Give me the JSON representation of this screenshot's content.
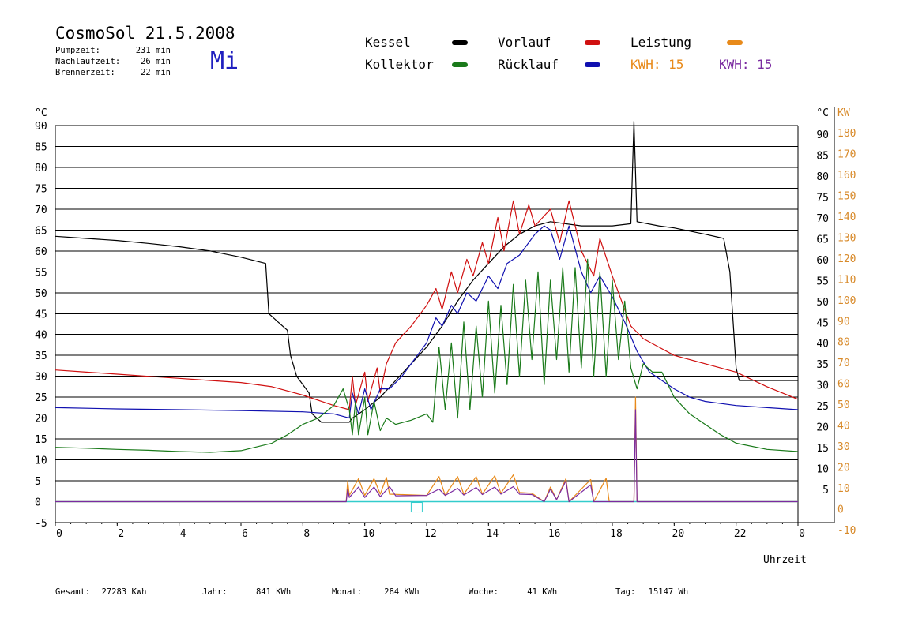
{
  "header": {
    "title": "CosmoSol 21.5.2008",
    "weekday": "Mi",
    "stats": [
      {
        "label": "Pumpzeit:",
        "value": "231 min"
      },
      {
        "label": "Nachlaufzeit:",
        "value": "26 min"
      },
      {
        "label": "Brennerzeit:",
        "value": "22 min"
      }
    ]
  },
  "legend": {
    "kessel": "Kessel",
    "kollektor": "Kollektor",
    "vorlauf": "Vorlauf",
    "ruecklauf": "Rücklauf",
    "leistung": "Leistung",
    "kwh_orange_label": "KWH:",
    "kwh_orange_value": "15",
    "kwh_purple_label": "KWH:",
    "kwh_purple_value": "15"
  },
  "colors": {
    "kessel": "#000000",
    "kollektor": "#1a7a1a",
    "vorlauf": "#d01010",
    "ruecklauf": "#1010b0",
    "leistung": "#e88a1a",
    "kwh2": "#7a2aa0",
    "baseline": "#33cccc",
    "right_axis": "#d88a2a"
  },
  "footer": [
    {
      "label": "Gesamt:",
      "value": "27283 KWh"
    },
    {
      "label": "Jahr:",
      "value": "841 KWh"
    },
    {
      "label": "Monat:",
      "value": "284 KWh"
    },
    {
      "label": "Woche:",
      "value": "41 KWh"
    },
    {
      "label": "Tag:",
      "value": "15147 Wh"
    }
  ],
  "chart_data": {
    "type": "line",
    "xlabel": "Uhrzeit",
    "ylabel_left": "°C",
    "ylabel_right": "KW",
    "xlim": [
      0,
      24
    ],
    "ylim": [
      -5,
      90
    ],
    "ylim_right": [
      -10,
      180
    ],
    "x_ticks": [
      "0",
      "2",
      "4",
      "6",
      "8",
      "10",
      "12",
      "14",
      "16",
      "18",
      "20",
      "22",
      "0"
    ],
    "y_ticks_left": [
      "90",
      "85",
      "80",
      "75",
      "70",
      "65",
      "60",
      "55",
      "50",
      "45",
      "40",
      "35",
      "30",
      "25",
      "20",
      "15",
      "10",
      "5",
      "0",
      "-5"
    ],
    "y_ticks_right_c": [
      "90",
      "85",
      "80",
      "75",
      "70",
      "65",
      "60",
      "55",
      "50",
      "45",
      "40",
      "35",
      "30",
      "25",
      "20",
      "15",
      "10",
      "5"
    ],
    "y_ticks_right_kw": [
      "180",
      "170",
      "160",
      "150",
      "140",
      "130",
      "120",
      "110",
      "100",
      "90",
      "80",
      "70",
      "60",
      "50",
      "40",
      "30",
      "20",
      "10",
      "0",
      "-10"
    ],
    "grid": "horizontal",
    "series": [
      {
        "name": "Kessel",
        "key": "kessel",
        "points": [
          [
            0,
            63.5
          ],
          [
            1,
            63
          ],
          [
            2,
            62.5
          ],
          [
            3,
            61.8
          ],
          [
            4,
            61
          ],
          [
            5,
            60
          ],
          [
            6,
            58.5
          ],
          [
            6.8,
            57
          ],
          [
            6.9,
            45
          ],
          [
            7.2,
            43
          ],
          [
            7.5,
            41
          ],
          [
            7.6,
            35
          ],
          [
            7.8,
            30
          ],
          [
            8.2,
            26
          ],
          [
            8.3,
            21
          ],
          [
            8.6,
            19
          ],
          [
            9.5,
            19
          ],
          [
            9.6,
            20
          ],
          [
            10,
            22
          ],
          [
            10.5,
            25
          ],
          [
            11,
            29
          ],
          [
            11.5,
            33
          ],
          [
            12,
            37
          ],
          [
            12.5,
            42
          ],
          [
            13,
            48
          ],
          [
            13.5,
            53
          ],
          [
            14,
            57
          ],
          [
            14.5,
            61
          ],
          [
            15,
            64
          ],
          [
            15.5,
            66
          ],
          [
            16,
            67
          ],
          [
            17,
            66
          ],
          [
            18,
            66
          ],
          [
            18.6,
            66.5
          ],
          [
            18.7,
            91
          ],
          [
            18.8,
            67
          ],
          [
            19.5,
            66
          ],
          [
            20,
            65.5
          ],
          [
            21,
            64
          ],
          [
            21.6,
            63
          ],
          [
            21.8,
            55
          ],
          [
            22,
            32
          ],
          [
            22.1,
            29
          ],
          [
            24,
            29
          ]
        ]
      },
      {
        "name": "Vorlauf",
        "key": "vorlauf",
        "points": [
          [
            0,
            31.5
          ],
          [
            1,
            31
          ],
          [
            2,
            30.5
          ],
          [
            3,
            30
          ],
          [
            4,
            29.5
          ],
          [
            5,
            29
          ],
          [
            6,
            28.5
          ],
          [
            7,
            27.5
          ],
          [
            8,
            25.5
          ],
          [
            9,
            23
          ],
          [
            9.5,
            22
          ],
          [
            9.6,
            30
          ],
          [
            9.7,
            23
          ],
          [
            10,
            31
          ],
          [
            10.1,
            24
          ],
          [
            10.4,
            32
          ],
          [
            10.5,
            26
          ],
          [
            10.7,
            33
          ],
          [
            11,
            38
          ],
          [
            11.5,
            42
          ],
          [
            12,
            47
          ],
          [
            12.3,
            51
          ],
          [
            12.5,
            46
          ],
          [
            12.8,
            55
          ],
          [
            13,
            50
          ],
          [
            13.3,
            58
          ],
          [
            13.5,
            54
          ],
          [
            13.8,
            62
          ],
          [
            14,
            57
          ],
          [
            14.3,
            68
          ],
          [
            14.5,
            60
          ],
          [
            14.8,
            72
          ],
          [
            15,
            64
          ],
          [
            15.3,
            71
          ],
          [
            15.5,
            66
          ],
          [
            16,
            70
          ],
          [
            16.3,
            62
          ],
          [
            16.6,
            72
          ],
          [
            17,
            60
          ],
          [
            17.4,
            54
          ],
          [
            17.6,
            63
          ],
          [
            18,
            54
          ],
          [
            18.3,
            48
          ],
          [
            18.6,
            42
          ],
          [
            19,
            39
          ],
          [
            19.5,
            37
          ],
          [
            20,
            35
          ],
          [
            21,
            33
          ],
          [
            22,
            31
          ],
          [
            23,
            27.5
          ],
          [
            24,
            24.5
          ]
        ]
      },
      {
        "name": "Rücklauf",
        "key": "ruecklauf",
        "points": [
          [
            0,
            22.5
          ],
          [
            2,
            22.2
          ],
          [
            4,
            22
          ],
          [
            6,
            21.8
          ],
          [
            8,
            21.5
          ],
          [
            9,
            21
          ],
          [
            9.5,
            20
          ],
          [
            9.6,
            26
          ],
          [
            9.8,
            21
          ],
          [
            10,
            27
          ],
          [
            10.2,
            22
          ],
          [
            10.5,
            27
          ],
          [
            10.8,
            27
          ],
          [
            11.2,
            30
          ],
          [
            11.6,
            34
          ],
          [
            12,
            38
          ],
          [
            12.3,
            44
          ],
          [
            12.5,
            42
          ],
          [
            12.8,
            47
          ],
          [
            13,
            45
          ],
          [
            13.3,
            50
          ],
          [
            13.6,
            48
          ],
          [
            14,
            54
          ],
          [
            14.3,
            51
          ],
          [
            14.6,
            57
          ],
          [
            15,
            59
          ],
          [
            15.5,
            64
          ],
          [
            15.8,
            66
          ],
          [
            16,
            65
          ],
          [
            16.3,
            58
          ],
          [
            16.6,
            66
          ],
          [
            17,
            55
          ],
          [
            17.3,
            50
          ],
          [
            17.6,
            54
          ],
          [
            18,
            49
          ],
          [
            18.4,
            43
          ],
          [
            18.8,
            36
          ],
          [
            19.2,
            31
          ],
          [
            19.6,
            29
          ],
          [
            20,
            27
          ],
          [
            20.5,
            25
          ],
          [
            21,
            24
          ],
          [
            22,
            23
          ],
          [
            23,
            22.5
          ],
          [
            24,
            22
          ]
        ]
      },
      {
        "name": "Kollektor",
        "key": "kollektor",
        "points": [
          [
            0,
            13
          ],
          [
            1,
            12.8
          ],
          [
            2,
            12.5
          ],
          [
            3,
            12.3
          ],
          [
            4,
            12
          ],
          [
            5,
            11.8
          ],
          [
            6,
            12.2
          ],
          [
            7,
            14
          ],
          [
            7.5,
            16
          ],
          [
            8,
            18.5
          ],
          [
            8.5,
            20
          ],
          [
            9,
            23
          ],
          [
            9.3,
            27
          ],
          [
            9.5,
            22
          ],
          [
            9.6,
            16
          ],
          [
            9.7,
            24
          ],
          [
            9.8,
            16
          ],
          [
            10,
            25
          ],
          [
            10.1,
            16
          ],
          [
            10.3,
            24
          ],
          [
            10.5,
            17
          ],
          [
            10.7,
            20
          ],
          [
            11,
            18.5
          ],
          [
            11.5,
            19.5
          ],
          [
            12,
            21
          ],
          [
            12.2,
            19
          ],
          [
            12.4,
            37
          ],
          [
            12.6,
            22
          ],
          [
            12.8,
            38
          ],
          [
            13,
            20
          ],
          [
            13.2,
            43
          ],
          [
            13.4,
            22
          ],
          [
            13.6,
            42
          ],
          [
            13.8,
            25
          ],
          [
            14,
            48
          ],
          [
            14.2,
            26
          ],
          [
            14.4,
            47
          ],
          [
            14.6,
            28
          ],
          [
            14.8,
            52
          ],
          [
            15,
            30
          ],
          [
            15.2,
            53
          ],
          [
            15.4,
            34
          ],
          [
            15.6,
            55
          ],
          [
            15.8,
            28
          ],
          [
            16,
            53
          ],
          [
            16.2,
            34
          ],
          [
            16.4,
            56
          ],
          [
            16.6,
            31
          ],
          [
            16.8,
            56
          ],
          [
            17,
            32
          ],
          [
            17.2,
            58
          ],
          [
            17.4,
            30
          ],
          [
            17.6,
            55
          ],
          [
            17.8,
            30
          ],
          [
            18,
            53
          ],
          [
            18.2,
            34
          ],
          [
            18.4,
            48
          ],
          [
            18.6,
            32
          ],
          [
            18.8,
            27
          ],
          [
            19,
            33
          ],
          [
            19.3,
            31
          ],
          [
            19.6,
            31
          ],
          [
            20,
            25
          ],
          [
            20.5,
            21
          ],
          [
            21,
            18.5
          ],
          [
            21.5,
            16
          ],
          [
            22,
            14
          ],
          [
            23,
            12.5
          ],
          [
            24,
            12
          ]
        ]
      },
      {
        "name": "Leistung",
        "key": "leistung",
        "points": [
          [
            0,
            0
          ],
          [
            9.4,
            0
          ],
          [
            9.45,
            5
          ],
          [
            9.5,
            1.5
          ],
          [
            9.8,
            5.5
          ],
          [
            10,
            1.5
          ],
          [
            10.3,
            5.5
          ],
          [
            10.5,
            1.8
          ],
          [
            10.7,
            5.8
          ],
          [
            10.8,
            1.8
          ],
          [
            12,
            1.5
          ],
          [
            12.4,
            6
          ],
          [
            12.6,
            1.5
          ],
          [
            13,
            6
          ],
          [
            13.2,
            1.8
          ],
          [
            13.6,
            6
          ],
          [
            13.8,
            1.8
          ],
          [
            14.2,
            6.2
          ],
          [
            14.4,
            2
          ],
          [
            14.8,
            6.4
          ],
          [
            15,
            2.2
          ],
          [
            15.4,
            2
          ],
          [
            15.8,
            0
          ],
          [
            16,
            3.5
          ],
          [
            16.2,
            0.5
          ],
          [
            16.5,
            5.5
          ],
          [
            16.6,
            0
          ],
          [
            17.3,
            5.3
          ],
          [
            17.4,
            0
          ],
          [
            17.8,
            5.6
          ],
          [
            17.9,
            0
          ],
          [
            18.7,
            0
          ],
          [
            18.75,
            25
          ],
          [
            18.8,
            0
          ],
          [
            24,
            0
          ]
        ]
      },
      {
        "name": "KWH",
        "key": "kwh2",
        "points": [
          [
            0,
            0
          ],
          [
            9.4,
            0
          ],
          [
            9.45,
            3
          ],
          [
            9.5,
            1
          ],
          [
            9.8,
            3.5
          ],
          [
            10,
            1
          ],
          [
            10.3,
            3.5
          ],
          [
            10.5,
            1.2
          ],
          [
            10.8,
            3.6
          ],
          [
            11,
            1.4
          ],
          [
            12,
            1.5
          ],
          [
            12.4,
            3
          ],
          [
            12.6,
            1.5
          ],
          [
            13,
            3.2
          ],
          [
            13.2,
            1.6
          ],
          [
            13.6,
            3.4
          ],
          [
            13.8,
            1.7
          ],
          [
            14.2,
            3.5
          ],
          [
            14.4,
            1.8
          ],
          [
            14.8,
            3.6
          ],
          [
            15,
            1.8
          ],
          [
            15.4,
            1.7
          ],
          [
            15.8,
            0
          ],
          [
            16,
            3
          ],
          [
            16.2,
            0.5
          ],
          [
            16.5,
            5
          ],
          [
            16.6,
            0
          ],
          [
            17.3,
            4
          ],
          [
            17.4,
            0
          ],
          [
            18.7,
            0
          ],
          [
            18.75,
            22
          ],
          [
            18.8,
            0
          ],
          [
            24,
            0
          ]
        ]
      }
    ]
  }
}
